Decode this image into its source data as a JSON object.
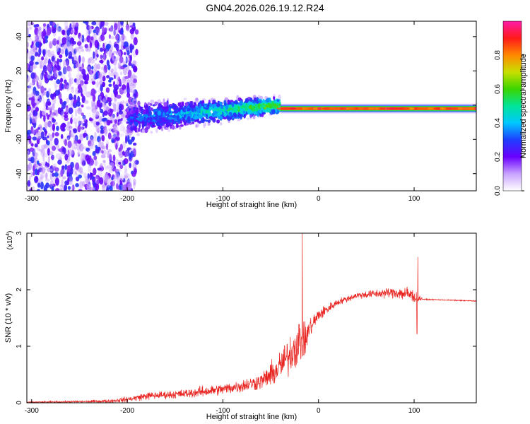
{
  "title": "GN04.2026.026.19.12.R24",
  "chart_data": [
    {
      "type": "heatmap",
      "name": "spectrogram",
      "xlabel": "Height of straight line (km)",
      "ylabel": "Frequency (Hz)",
      "xlim": [
        -305,
        165
      ],
      "ylim": [
        -50,
        49
      ],
      "xticks": [
        -300,
        -200,
        -100,
        0,
        100
      ],
      "xtick_labels": [
        "-300",
        "-200",
        "-100",
        "0",
        "100"
      ],
      "yticks": [
        -40,
        -20,
        0,
        20,
        40
      ],
      "ytick_labels": [
        "-40",
        "-20",
        "0",
        "20",
        "40"
      ],
      "colorbar": {
        "label": "Normalized spectral amplitude",
        "range": [
          0,
          1
        ],
        "ticks": [
          0.0,
          0.2,
          0.4,
          0.6,
          0.8
        ],
        "tick_labels": [
          "0.0",
          "0.2",
          "0.4",
          "0.6",
          "0.8"
        ],
        "colors": [
          "#ffffff",
          "#c9a3ff",
          "#6a00ff",
          "#1f3dff",
          "#00c8ff",
          "#00e59a",
          "#3bd400",
          "#c8e000",
          "#ff8800",
          "#ff1a1a",
          "#ff1aa8"
        ]
      },
      "features": [
        {
          "x_range": [
            -305,
            -200
          ],
          "description_value": "broadband noise",
          "amplitude": 0.15
        },
        {
          "x_range": [
            -200,
            -40
          ],
          "center_freq": [
            -8,
            0
          ],
          "freq_halfwidth": [
            8,
            4
          ],
          "amplitude": 0.35
        },
        {
          "x_range": [
            -40,
            165
          ],
          "center_freq": -2,
          "freq_halfwidth": 1.5,
          "amplitude": 0.95
        }
      ]
    },
    {
      "type": "line",
      "name": "snr",
      "xlabel": "Height of straight line (km)",
      "ylabel": "SNR (10 * v/v)",
      "yscale_label": "(x10",
      "yscale_exp": "4",
      "yscale_suffix": ")",
      "xlim": [
        -305,
        165
      ],
      "ylim": [
        0,
        3
      ],
      "xticks": [
        -300,
        -200,
        -100,
        0,
        100
      ],
      "xtick_labels": [
        "-300",
        "-200",
        "-100",
        "0",
        "100"
      ],
      "yticks": [
        0,
        1,
        2,
        3
      ],
      "ytick_labels": [
        "0",
        "1",
        "2",
        "3"
      ],
      "color": "#e8231f",
      "series": [
        {
          "name": "SNR",
          "x": [
            -305,
            -250,
            -220,
            -200,
            -180,
            -160,
            -140,
            -120,
            -100,
            -80,
            -60,
            -45,
            -30,
            -20,
            -15,
            -10,
            0,
            20,
            40,
            60,
            80,
            95,
            102,
            110,
            130,
            165
          ],
          "y": [
            0.01,
            0.02,
            0.03,
            0.06,
            0.12,
            0.14,
            0.16,
            0.2,
            0.24,
            0.3,
            0.38,
            0.55,
            0.85,
            1.1,
            1.05,
            1.3,
            1.55,
            1.78,
            1.9,
            1.93,
            1.95,
            1.92,
            1.86,
            1.83,
            1.82,
            1.8
          ],
          "noise": [
            0.01,
            0.02,
            0.03,
            0.05,
            0.07,
            0.07,
            0.08,
            0.1,
            0.1,
            0.12,
            0.15,
            0.25,
            0.35,
            0.45,
            0.3,
            0.2,
            0.12,
            0.06,
            0.06,
            0.08,
            0.1,
            0.16,
            0.1,
            0.01,
            0.01,
            0.01
          ],
          "spikes": [
            {
              "x": -17,
              "y": 3.0
            },
            {
              "x": 104,
              "y": 2.58
            },
            {
              "x": 103,
              "y": 1.22
            }
          ]
        }
      ]
    }
  ]
}
